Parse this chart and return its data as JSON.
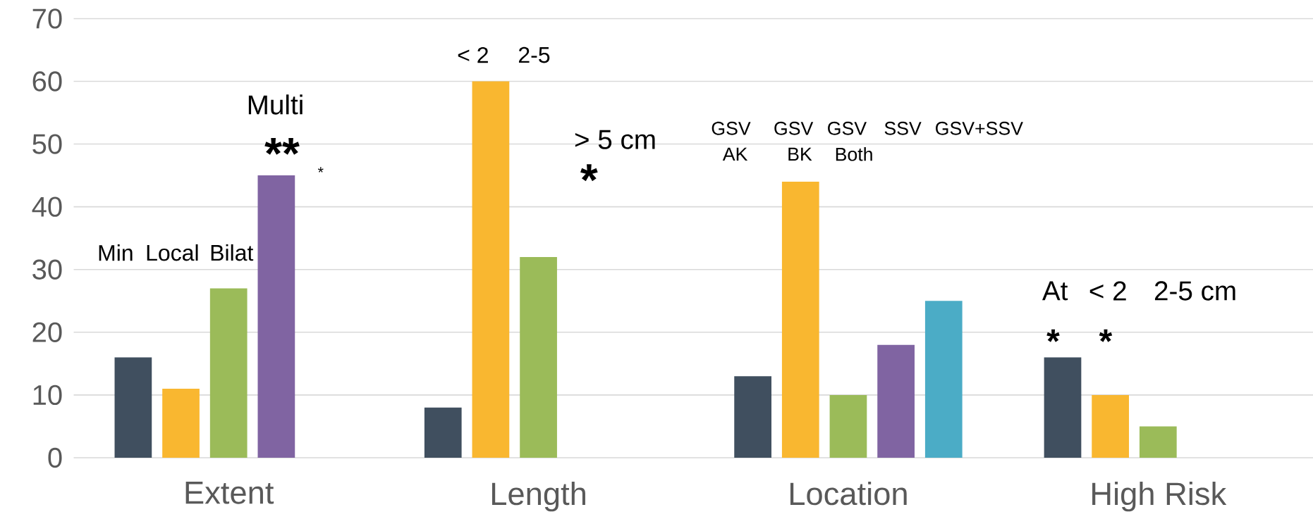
{
  "chart_data": {
    "type": "bar",
    "categories": [
      "Extent",
      "Length",
      "Location",
      "High Risk"
    ],
    "series": [
      {
        "color": "#404f5f",
        "values": [
          16,
          8,
          13,
          16
        ]
      },
      {
        "color": "#f9b730",
        "values": [
          11,
          60,
          44,
          10
        ]
      },
      {
        "color": "#9bbb59",
        "values": [
          27,
          32,
          10,
          5
        ]
      },
      {
        "color": "#8064a2",
        "values": [
          45,
          null,
          18,
          null
        ]
      },
      {
        "color": "#4bacc6",
        "values": [
          null,
          null,
          25,
          null
        ]
      }
    ],
    "ylim": [
      0,
      70
    ],
    "yticks": [
      0,
      10,
      20,
      30,
      40,
      50,
      60,
      70
    ],
    "grid": "y",
    "annotations": [
      "Min",
      "Local",
      "Bilat",
      "Multi",
      "**",
      "*",
      "< 2",
      "2-5",
      "> 5 cm",
      "*",
      "GSV",
      "AK",
      "GSV",
      "BK",
      "GSV",
      "Both",
      "SSV",
      "GSV+SSV",
      "At",
      "< 2",
      "2-5 cm",
      "*",
      "*"
    ]
  }
}
